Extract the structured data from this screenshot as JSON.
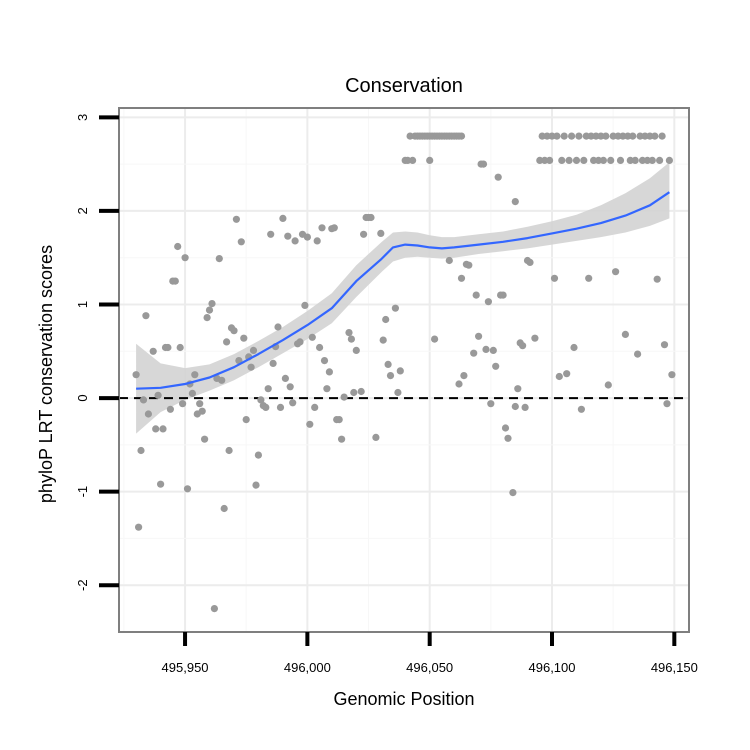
{
  "chart_data": {
    "type": "scatter",
    "title": "Conservation",
    "xlabel": "Genomic Position",
    "ylabel": "phyloP LRT conservation scores",
    "xlim": [
      495923,
      496156
    ],
    "ylim": [
      -2.5,
      3.1
    ],
    "x_ticks": [
      495950,
      496000,
      496050,
      496100,
      496150
    ],
    "x_tick_labels": [
      "495,950",
      "496,000",
      "496,050",
      "496,100",
      "496,150"
    ],
    "y_ticks": [
      -2,
      -1,
      0,
      1,
      2,
      3
    ],
    "y_tick_labels": [
      "-2",
      "-1",
      "0",
      "1",
      "2",
      "3"
    ],
    "reference_line": {
      "y": 0,
      "style": "dashed"
    },
    "colors": {
      "points": "#999999",
      "smooth": "#3366ff",
      "band": "#d3d3d3",
      "border": "#7f7f7f"
    },
    "series": [
      {
        "name": "points",
        "points": [
          [
            495930,
            0.25
          ],
          [
            495931,
            -1.38
          ],
          [
            495932,
            -0.56
          ],
          [
            495933,
            -0.02
          ],
          [
            495934,
            0.88
          ],
          [
            495935,
            -0.17
          ],
          [
            495937,
            0.5
          ],
          [
            495938,
            -0.33
          ],
          [
            495939,
            0.03
          ],
          [
            495940,
            -0.92
          ],
          [
            495941,
            -0.33
          ],
          [
            495942,
            0.54
          ],
          [
            495943,
            0.54
          ],
          [
            495944,
            -0.12
          ],
          [
            495945,
            1.25
          ],
          [
            495946,
            1.25
          ],
          [
            495947,
            1.62
          ],
          [
            495948,
            0.54
          ],
          [
            495949,
            -0.06
          ],
          [
            495950,
            1.5
          ],
          [
            495951,
            -0.97
          ],
          [
            495952,
            0.15
          ],
          [
            495953,
            0.05
          ],
          [
            495954,
            0.25
          ],
          [
            495955,
            -0.17
          ],
          [
            495956,
            -0.06
          ],
          [
            495957,
            -0.14
          ],
          [
            495958,
            -0.44
          ],
          [
            495959,
            0.86
          ],
          [
            495960,
            0.94
          ],
          [
            495961,
            1.01
          ],
          [
            495962,
            -2.25
          ],
          [
            495963,
            0.21
          ],
          [
            495964,
            1.49
          ],
          [
            495965,
            0.19
          ],
          [
            495966,
            -1.18
          ],
          [
            495967,
            0.6
          ],
          [
            495968,
            -0.56
          ],
          [
            495969,
            0.75
          ],
          [
            495970,
            0.72
          ],
          [
            495971,
            1.91
          ],
          [
            495972,
            0.4
          ],
          [
            495973,
            1.67
          ],
          [
            495974,
            0.64
          ],
          [
            495975,
            -0.23
          ],
          [
            495976,
            0.44
          ],
          [
            495977,
            0.33
          ],
          [
            495978,
            0.51
          ],
          [
            495979,
            -0.93
          ],
          [
            495980,
            -0.61
          ],
          [
            495981,
            -0.02
          ],
          [
            495982,
            -0.08
          ],
          [
            495983,
            -0.1
          ],
          [
            495984,
            0.1
          ],
          [
            495985,
            1.75
          ],
          [
            495986,
            0.37
          ],
          [
            495987,
            0.55
          ],
          [
            495988,
            0.76
          ],
          [
            495989,
            -0.1
          ],
          [
            495990,
            1.92
          ],
          [
            495991,
            0.21
          ],
          [
            495992,
            1.73
          ],
          [
            495993,
            0.12
          ],
          [
            495994,
            -0.05
          ],
          [
            495995,
            1.68
          ],
          [
            495996,
            0.58
          ],
          [
            495997,
            0.6
          ],
          [
            495998,
            1.75
          ],
          [
            495999,
            0.99
          ],
          [
            496000,
            1.72
          ],
          [
            496001,
            -0.28
          ],
          [
            496002,
            0.65
          ],
          [
            496003,
            -0.1
          ],
          [
            496004,
            1.68
          ],
          [
            496005,
            0.54
          ],
          [
            496006,
            1.82
          ],
          [
            496007,
            0.4
          ],
          [
            496008,
            0.1
          ],
          [
            496009,
            0.28
          ],
          [
            496010,
            1.81
          ],
          [
            496011,
            1.82
          ],
          [
            496012,
            -0.23
          ],
          [
            496013,
            -0.23
          ],
          [
            496014,
            -0.44
          ],
          [
            496015,
            0.01
          ],
          [
            496017,
            0.7
          ],
          [
            496018,
            0.63
          ],
          [
            496019,
            0.06
          ],
          [
            496020,
            0.51
          ],
          [
            496022,
            0.07
          ],
          [
            496023,
            1.75
          ],
          [
            496024,
            1.93
          ],
          [
            496025,
            1.93
          ],
          [
            496026,
            1.93
          ],
          [
            496028,
            -0.42
          ],
          [
            496030,
            1.76
          ],
          [
            496031,
            0.62
          ],
          [
            496032,
            0.84
          ],
          [
            496033,
            0.36
          ],
          [
            496034,
            0.24
          ],
          [
            496036,
            0.96
          ],
          [
            496037,
            0.06
          ],
          [
            496038,
            0.29
          ],
          [
            496040,
            2.54
          ],
          [
            496041,
            2.54
          ],
          [
            496042,
            2.8
          ],
          [
            496043,
            2.54
          ],
          [
            496044,
            2.8
          ],
          [
            496045,
            2.8
          ],
          [
            496046,
            2.8
          ],
          [
            496047,
            2.8
          ],
          [
            496048,
            2.8
          ],
          [
            496049,
            2.8
          ],
          [
            496050,
            2.8
          ],
          [
            496051,
            2.8
          ],
          [
            496052,
            2.8
          ],
          [
            496053,
            2.8
          ],
          [
            496054,
            2.8
          ],
          [
            496055,
            2.8
          ],
          [
            496056,
            2.8
          ],
          [
            496057,
            2.8
          ],
          [
            496058,
            2.8
          ],
          [
            496059,
            2.8
          ],
          [
            496060,
            2.8
          ],
          [
            496061,
            2.8
          ],
          [
            496062,
            2.8
          ],
          [
            496063,
            2.8
          ],
          [
            496050,
            2.54
          ],
          [
            496052,
            0.63
          ],
          [
            496058,
            1.47
          ],
          [
            496062,
            0.15
          ],
          [
            496063,
            1.28
          ],
          [
            496064,
            0.24
          ],
          [
            496065,
            1.43
          ],
          [
            496066,
            1.42
          ],
          [
            496068,
            0.48
          ],
          [
            496069,
            1.1
          ],
          [
            496070,
            0.66
          ],
          [
            496071,
            2.5
          ],
          [
            496072,
            2.5
          ],
          [
            496073,
            0.52
          ],
          [
            496074,
            1.03
          ],
          [
            496075,
            -0.06
          ],
          [
            496076,
            0.51
          ],
          [
            496077,
            0.34
          ],
          [
            496078,
            2.36
          ],
          [
            496079,
            1.1
          ],
          [
            496080,
            1.1
          ],
          [
            496081,
            -0.32
          ],
          [
            496082,
            -0.43
          ],
          [
            496084,
            -1.01
          ],
          [
            496085,
            2.1
          ],
          [
            496085,
            -0.09
          ],
          [
            496086,
            0.1
          ],
          [
            496087,
            0.59
          ],
          [
            496088,
            0.56
          ],
          [
            496089,
            -0.1
          ],
          [
            496090,
            1.47
          ],
          [
            496091,
            1.45
          ],
          [
            496093,
            0.64
          ],
          [
            496095,
            2.54
          ],
          [
            496096,
            2.8
          ],
          [
            496097,
            2.54
          ],
          [
            496098,
            2.8
          ],
          [
            496099,
            2.54
          ],
          [
            496100,
            2.8
          ],
          [
            496101,
            1.28
          ],
          [
            496102,
            2.8
          ],
          [
            496103,
            0.23
          ],
          [
            496104,
            2.54
          ],
          [
            496105,
            2.8
          ],
          [
            496106,
            0.26
          ],
          [
            496107,
            2.54
          ],
          [
            496108,
            2.8
          ],
          [
            496109,
            0.54
          ],
          [
            496110,
            2.54
          ],
          [
            496111,
            2.8
          ],
          [
            496112,
            -0.12
          ],
          [
            496113,
            2.54
          ],
          [
            496114,
            2.8
          ],
          [
            496115,
            1.28
          ],
          [
            496116,
            2.8
          ],
          [
            496117,
            2.54
          ],
          [
            496118,
            2.8
          ],
          [
            496119,
            2.54
          ],
          [
            496120,
            2.8
          ],
          [
            496121,
            2.54
          ],
          [
            496122,
            2.8
          ],
          [
            496123,
            0.14
          ],
          [
            496124,
            2.54
          ],
          [
            496125,
            2.8
          ],
          [
            496126,
            1.35
          ],
          [
            496127,
            2.8
          ],
          [
            496128,
            2.54
          ],
          [
            496129,
            2.8
          ],
          [
            496130,
            0.68
          ],
          [
            496131,
            2.8
          ],
          [
            496132,
            2.54
          ],
          [
            496133,
            2.8
          ],
          [
            496134,
            2.54
          ],
          [
            496135,
            0.47
          ],
          [
            496136,
            2.8
          ],
          [
            496137,
            2.54
          ],
          [
            496138,
            2.8
          ],
          [
            496139,
            2.54
          ],
          [
            496140,
            2.8
          ],
          [
            496141,
            2.54
          ],
          [
            496142,
            2.8
          ],
          [
            496143,
            1.27
          ],
          [
            496144,
            2.54
          ],
          [
            496145,
            2.8
          ],
          [
            496146,
            0.57
          ],
          [
            496147,
            -0.06
          ],
          [
            496148,
            2.54
          ],
          [
            496149,
            0.25
          ]
        ]
      },
      {
        "name": "smooth",
        "points": [
          [
            495930,
            0.1
          ],
          [
            495940,
            0.11
          ],
          [
            495950,
            0.15
          ],
          [
            495960,
            0.22
          ],
          [
            495970,
            0.33
          ],
          [
            495980,
            0.47
          ],
          [
            495990,
            0.62
          ],
          [
            496000,
            0.78
          ],
          [
            496010,
            0.96
          ],
          [
            496020,
            1.25
          ],
          [
            496030,
            1.48
          ],
          [
            496035,
            1.61
          ],
          [
            496040,
            1.64
          ],
          [
            496045,
            1.63
          ],
          [
            496050,
            1.61
          ],
          [
            496055,
            1.6
          ],
          [
            496060,
            1.61
          ],
          [
            496070,
            1.64
          ],
          [
            496080,
            1.67
          ],
          [
            496090,
            1.71
          ],
          [
            496100,
            1.76
          ],
          [
            496110,
            1.81
          ],
          [
            496120,
            1.87
          ],
          [
            496130,
            1.95
          ],
          [
            496140,
            2.06
          ],
          [
            496148,
            2.2
          ]
        ]
      }
    ],
    "confidence_band": [
      [
        495930,
        -0.38,
        0.58
      ],
      [
        495940,
        -0.15,
        0.37
      ],
      [
        495950,
        -0.02,
        0.32
      ],
      [
        495960,
        0.08,
        0.36
      ],
      [
        495970,
        0.19,
        0.47
      ],
      [
        495980,
        0.33,
        0.61
      ],
      [
        495990,
        0.48,
        0.76
      ],
      [
        496000,
        0.63,
        0.93
      ],
      [
        496010,
        0.8,
        1.12
      ],
      [
        496020,
        1.08,
        1.42
      ],
      [
        496030,
        1.34,
        1.66
      ],
      [
        496035,
        1.46,
        1.77
      ],
      [
        496040,
        1.5,
        1.78
      ],
      [
        496045,
        1.51,
        1.77
      ],
      [
        496050,
        1.5,
        1.74
      ],
      [
        496055,
        1.49,
        1.72
      ],
      [
        496060,
        1.5,
        1.72
      ],
      [
        496070,
        1.54,
        1.75
      ],
      [
        496080,
        1.57,
        1.78
      ],
      [
        496090,
        1.6,
        1.83
      ],
      [
        496100,
        1.64,
        1.89
      ],
      [
        496110,
        1.68,
        1.96
      ],
      [
        496120,
        1.72,
        2.06
      ],
      [
        496130,
        1.77,
        2.19
      ],
      [
        496140,
        1.84,
        2.35
      ],
      [
        496148,
        1.92,
        2.52
      ]
    ]
  }
}
